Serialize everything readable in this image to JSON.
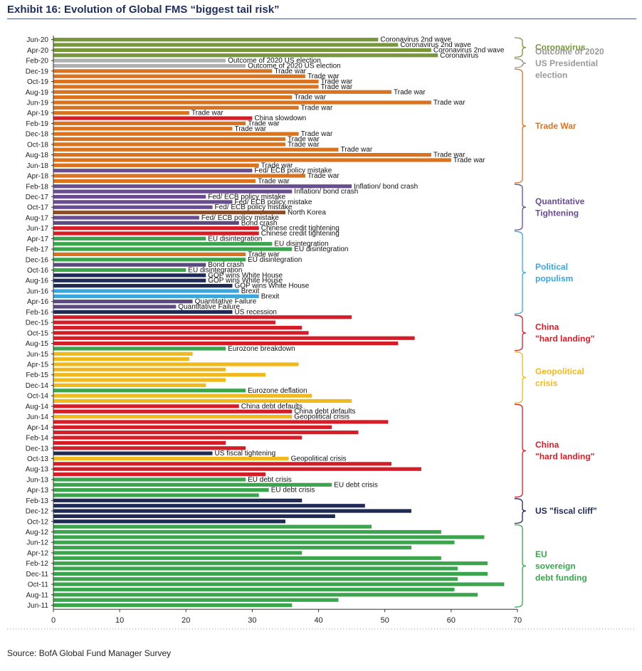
{
  "title": "Exhibit 16: Evolution of Global FMS “biggest tail risk”",
  "source": "Source: BofA Global Fund Manager Survey",
  "colors": {
    "Coronavirus": "#78963a",
    "US election": "#b0b0b0",
    "Trade war": "#d9731f",
    "China": "#d51d28",
    "Fed/ECB": "#6a4c93",
    "Inflation": "#6a4c93",
    "North Korea": "#8a4f2a",
    "Bond crash": "#5a4a80",
    "EU": "#3aa54c",
    "US politics": "#1f2a55",
    "Brexit": "#3aa6dc",
    "Geopolitical": "#f0b91e"
  },
  "chart_data": {
    "type": "bar",
    "orientation": "horizontal",
    "title": "Exhibit 16: Evolution of Global FMS “biggest tail risk”",
    "xlabel": "",
    "ylabel": "",
    "xlim": [
      0,
      70
    ],
    "x_ticks": [
      "0",
      "10",
      "20",
      "30",
      "40",
      "50",
      "60",
      "70"
    ],
    "tick_labels": [
      "Jun-20",
      "Apr-20",
      "Feb-20",
      "Dec-19",
      "Oct-19",
      "Aug-19",
      "Jun-19",
      "Apr-19",
      "Feb-19",
      "Dec-18",
      "Oct-18",
      "Aug-18",
      "Jun-18",
      "Apr-18",
      "Feb-18",
      "Dec-17",
      "Oct-17",
      "Aug-17",
      "Jun-17",
      "Apr-17",
      "Feb-17",
      "Dec-16",
      "Oct-16",
      "Aug-16",
      "Jun-16",
      "Apr-16",
      "Feb-16",
      "Dec-15",
      "Oct-15",
      "Aug-15",
      "Jun-15",
      "Apr-15",
      "Feb-15",
      "Dec-14",
      "Oct-14",
      "Aug-14",
      "Jun-14",
      "Apr-14",
      "Feb-14",
      "Dec-13",
      "Oct-13",
      "Aug-13",
      "Jun-13",
      "Apr-13",
      "Feb-13",
      "Dec-12",
      "Oct-12",
      "Aug-12",
      "Jun-12",
      "Apr-12",
      "Feb-12",
      "Dec-11",
      "Oct-11",
      "Aug-11",
      "Jun-11"
    ],
    "bars": [
      {
        "month": "Jun-20",
        "risk": "Coronavirus",
        "value": 49,
        "label": "Coronavirus 2nd wave"
      },
      {
        "month": "May-20",
        "risk": "Coronavirus",
        "value": 52,
        "label": "Coronavirus 2nd wave"
      },
      {
        "month": "Apr-20",
        "risk": "Coronavirus",
        "value": 57,
        "label": "Coronavirus 2nd wave"
      },
      {
        "month": "Mar-20",
        "risk": "Coronavirus",
        "value": 58,
        "label": "Coronavirus"
      },
      {
        "month": "Feb-20",
        "risk": "US election",
        "value": 26,
        "label": "Outcome of 2020 US election"
      },
      {
        "month": "Jan-20",
        "risk": "US election",
        "value": 29,
        "label": "Outcome of 2020 US election"
      },
      {
        "month": "Dec-19",
        "risk": "Trade war",
        "value": 33,
        "label": "Trade war"
      },
      {
        "month": "Nov-19",
        "risk": "Trade war",
        "value": 38,
        "label": "Trade war"
      },
      {
        "month": "Oct-19",
        "risk": "Trade war",
        "value": 40,
        "label": "Trade war"
      },
      {
        "month": "Sep-19",
        "risk": "Trade war",
        "value": 40,
        "label": "Trade war"
      },
      {
        "month": "Aug-19",
        "risk": "Trade war",
        "value": 51,
        "label": "Trade war"
      },
      {
        "month": "Jul-19",
        "risk": "Trade war",
        "value": 36,
        "label": "Trade war"
      },
      {
        "month": "Jun-19",
        "risk": "Trade war",
        "value": 57,
        "label": "Trade war"
      },
      {
        "month": "May-19",
        "risk": "Trade war",
        "value": 37,
        "label": "Trade war"
      },
      {
        "month": "Apr-19",
        "risk": "Trade war",
        "value": 20.5,
        "label": "Trade war"
      },
      {
        "month": "Mar-19",
        "risk": "China",
        "value": 30,
        "label": "China slowdown"
      },
      {
        "month": "Feb-19",
        "risk": "Trade war",
        "value": 29,
        "label": "Trade war"
      },
      {
        "month": "Jan-19",
        "risk": "Trade war",
        "value": 27,
        "label": "Trade war"
      },
      {
        "month": "Dec-18",
        "risk": "Trade war",
        "value": 37,
        "label": "Trade war"
      },
      {
        "month": "Nov-18",
        "risk": "Trade war",
        "value": 35,
        "label": "Trade war"
      },
      {
        "month": "Oct-18",
        "risk": "Trade war",
        "value": 35,
        "label": "Trade war"
      },
      {
        "month": "Sep-18",
        "risk": "Trade war",
        "value": 43,
        "label": "Trade war"
      },
      {
        "month": "Aug-18",
        "risk": "Trade war",
        "value": 57,
        "label": "Trade war"
      },
      {
        "month": "Jul-18",
        "risk": "Trade war",
        "value": 60,
        "label": "Trade war"
      },
      {
        "month": "Jun-18",
        "risk": "Trade war",
        "value": 31,
        "label": "Trade war"
      },
      {
        "month": "May-18",
        "risk": "Fed/ECB",
        "value": 30,
        "label": "Fed/ ECB policy mistake"
      },
      {
        "month": "Apr-18",
        "risk": "Trade war",
        "value": 38,
        "label": "Trade war"
      },
      {
        "month": "Mar-18",
        "risk": "Trade war",
        "value": 30.5,
        "label": "Trade war"
      },
      {
        "month": "Feb-18",
        "risk": "Inflation",
        "value": 45,
        "label": "Inflation/ bond crash"
      },
      {
        "month": "Jan-18",
        "risk": "Inflation",
        "value": 36,
        "label": "Inflation/ bond crash"
      },
      {
        "month": "Dec-17",
        "risk": "Fed/ECB",
        "value": 23,
        "label": "Fed/ ECB policy mistake"
      },
      {
        "month": "Nov-17",
        "risk": "Fed/ECB",
        "value": 27,
        "label": "Fed/ ECB policy mistake"
      },
      {
        "month": "Oct-17",
        "risk": "Fed/ECB",
        "value": 24,
        "label": "Fed/ ECB policy mistake"
      },
      {
        "month": "Sep-17",
        "risk": "North Korea",
        "value": 35,
        "label": "North Korea"
      },
      {
        "month": "Aug-17",
        "risk": "Fed/ECB",
        "value": 22,
        "label": "Fed/ ECB policy mistake"
      },
      {
        "month": "Jul-17",
        "risk": "Bond crash",
        "value": 28,
        "label": "Bond crash"
      },
      {
        "month": "Jun-17",
        "risk": "China",
        "value": 31,
        "label": "Chinese credit tightening"
      },
      {
        "month": "May-17",
        "risk": "China",
        "value": 31,
        "label": "Chinese credit tightening"
      },
      {
        "month": "Apr-17",
        "risk": "EU",
        "value": 23,
        "label": "EU disintegration"
      },
      {
        "month": "Mar-17",
        "risk": "EU",
        "value": 33,
        "label": "EU disintegration"
      },
      {
        "month": "Feb-17",
        "risk": "EU",
        "value": 36,
        "label": "EU disintegration"
      },
      {
        "month": "Jan-17",
        "risk": "Trade war",
        "value": 29,
        "label": "Trade war"
      },
      {
        "month": "Dec-16",
        "risk": "EU",
        "value": 29,
        "label": "EU disintegration"
      },
      {
        "month": "Nov-16",
        "risk": "Bond crash",
        "value": 23,
        "label": "Bond crash"
      },
      {
        "month": "Oct-16",
        "risk": "EU",
        "value": 20,
        "label": "EU disintegration"
      },
      {
        "month": "Sep-16",
        "risk": "US politics",
        "value": 23,
        "label": "GOP wins White House"
      },
      {
        "month": "Aug-16",
        "risk": "US politics",
        "value": 23,
        "label": "GOP wins White House"
      },
      {
        "month": "Jul-16",
        "risk": "US politics",
        "value": 27,
        "label": "GOP wins White House"
      },
      {
        "month": "Jun-16",
        "risk": "Brexit",
        "value": 28,
        "label": "Brexit"
      },
      {
        "month": "May-16",
        "risk": "Brexit",
        "value": 31,
        "label": "Brexit"
      },
      {
        "month": "Apr-16",
        "risk": "Bond crash",
        "value": 21,
        "label": "Quantitative Failure"
      },
      {
        "month": "Mar-16",
        "risk": "Bond crash",
        "value": 18.5,
        "label": "Quantitative Failure"
      },
      {
        "month": "Feb-16",
        "risk": "US politics",
        "value": 27,
        "label": "US recession"
      },
      {
        "month": "Jan-16",
        "risk": "China",
        "value": 45,
        "label": ""
      },
      {
        "month": "Dec-15",
        "risk": "China",
        "value": 33.5,
        "label": ""
      },
      {
        "month": "Nov-15",
        "risk": "China",
        "value": 37.5,
        "label": ""
      },
      {
        "month": "Oct-15",
        "risk": "China",
        "value": 38.5,
        "label": ""
      },
      {
        "month": "Sep-15",
        "risk": "China",
        "value": 54.5,
        "label": ""
      },
      {
        "month": "Aug-15",
        "risk": "China",
        "value": 52,
        "label": ""
      },
      {
        "month": "Jul-15",
        "risk": "EU",
        "value": 26,
        "label": "Eurozone breakdown"
      },
      {
        "month": "Jun-15",
        "risk": "Geopolitical",
        "value": 21,
        "label": ""
      },
      {
        "month": "May-15",
        "risk": "Geopolitical",
        "value": 20.5,
        "label": ""
      },
      {
        "month": "Apr-15",
        "risk": "Geopolitical",
        "value": 37,
        "label": ""
      },
      {
        "month": "Mar-15",
        "risk": "Geopolitical",
        "value": 26,
        "label": ""
      },
      {
        "month": "Feb-15",
        "risk": "Geopolitical",
        "value": 32,
        "label": ""
      },
      {
        "month": "Jan-15",
        "risk": "Geopolitical",
        "value": 26,
        "label": ""
      },
      {
        "month": "Dec-14",
        "risk": "Geopolitical",
        "value": 23,
        "label": ""
      },
      {
        "month": "Nov-14",
        "risk": "EU",
        "value": 29,
        "label": "Eurozone deflation"
      },
      {
        "month": "Oct-14",
        "risk": "Geopolitical",
        "value": 39,
        "label": ""
      },
      {
        "month": "Sep-14",
        "risk": "Geopolitical",
        "value": 45,
        "label": ""
      },
      {
        "month": "Aug-14",
        "risk": "China",
        "value": 28,
        "label": "China debt defaults"
      },
      {
        "month": "Jul-14",
        "risk": "China",
        "value": 36,
        "label": "China debt defaults"
      },
      {
        "month": "Jun-14",
        "risk": "Geopolitical",
        "value": 36,
        "label": "Geopolitical crisis"
      },
      {
        "month": "May-14",
        "risk": "China",
        "value": 50.5,
        "label": ""
      },
      {
        "month": "Apr-14",
        "risk": "China",
        "value": 42,
        "label": ""
      },
      {
        "month": "Mar-14",
        "risk": "China",
        "value": 46,
        "label": ""
      },
      {
        "month": "Feb-14",
        "risk": "China",
        "value": 37.5,
        "label": ""
      },
      {
        "month": "Jan-14",
        "risk": "China",
        "value": 26,
        "label": ""
      },
      {
        "month": "Dec-13",
        "risk": "China",
        "value": 29,
        "label": ""
      },
      {
        "month": "Nov-13",
        "risk": "US politics",
        "value": 24,
        "label": "US fiscal tightening"
      },
      {
        "month": "Oct-13",
        "risk": "Geopolitical",
        "value": 35.5,
        "label": "Geopolitical crisis"
      },
      {
        "month": "Sep-13",
        "risk": "China",
        "value": 51,
        "label": ""
      },
      {
        "month": "Aug-13",
        "risk": "China",
        "value": 55.5,
        "label": ""
      },
      {
        "month": "Jul-13",
        "risk": "China",
        "value": 32,
        "label": ""
      },
      {
        "month": "Jun-13",
        "risk": "EU",
        "value": 29,
        "label": "EU debt crisis"
      },
      {
        "month": "May-13",
        "risk": "EU",
        "value": 42,
        "label": "EU debt crisis"
      },
      {
        "month": "Apr-13",
        "risk": "EU",
        "value": 32.5,
        "label": "EU debt crisis"
      },
      {
        "month": "Mar-13",
        "risk": "EU",
        "value": 31,
        "label": ""
      },
      {
        "month": "Feb-13",
        "risk": "US politics",
        "value": 37.5,
        "label": ""
      },
      {
        "month": "Jan-13",
        "risk": "US politics",
        "value": 47,
        "label": ""
      },
      {
        "month": "Dec-12",
        "risk": "US politics",
        "value": 54,
        "label": ""
      },
      {
        "month": "Nov-12",
        "risk": "US politics",
        "value": 42.5,
        "label": ""
      },
      {
        "month": "Oct-12",
        "risk": "US politics",
        "value": 35,
        "label": ""
      },
      {
        "month": "Sep-12",
        "risk": "EU",
        "value": 48,
        "label": ""
      },
      {
        "month": "Aug-12",
        "risk": "EU",
        "value": 58.5,
        "label": ""
      },
      {
        "month": "Jul-12",
        "risk": "EU",
        "value": 65,
        "label": ""
      },
      {
        "month": "Jun-12",
        "risk": "EU",
        "value": 60.5,
        "label": ""
      },
      {
        "month": "May-12",
        "risk": "EU",
        "value": 54,
        "label": ""
      },
      {
        "month": "Apr-12",
        "risk": "EU",
        "value": 37.5,
        "label": ""
      },
      {
        "month": "Mar-12",
        "risk": "EU",
        "value": 58.5,
        "label": ""
      },
      {
        "month": "Feb-12",
        "risk": "EU",
        "value": 65.5,
        "label": ""
      },
      {
        "month": "Jan-12",
        "risk": "EU",
        "value": 61,
        "label": ""
      },
      {
        "month": "Dec-11",
        "risk": "EU",
        "value": 65.5,
        "label": ""
      },
      {
        "month": "Nov-11",
        "risk": "EU",
        "value": 61,
        "label": ""
      },
      {
        "month": "Oct-11",
        "risk": "EU",
        "value": 68,
        "label": ""
      },
      {
        "month": "Sep-11",
        "risk": "EU",
        "value": 60.5,
        "label": ""
      },
      {
        "month": "Aug-11",
        "risk": "EU",
        "value": 64,
        "label": ""
      },
      {
        "month": "Jul-11",
        "risk": "EU",
        "value": 43,
        "label": ""
      },
      {
        "month": "Jun-11",
        "risk": "EU",
        "value": 36,
        "label": ""
      }
    ],
    "regimes": [
      {
        "label": "Coronavirus",
        "from": "Jun-20",
        "to": "Mar-20",
        "color": "#78963a"
      },
      {
        "label": "Outcome of 2020 US Presidential election",
        "from": "Feb-20",
        "to": "Jan-20",
        "color": "#999999"
      },
      {
        "label": "Trade War",
        "from": "Dec-19",
        "to": "Mar-18",
        "color": "#d9731f"
      },
      {
        "label": "Quantitative Tightening",
        "from": "Feb-18",
        "to": "Jun-17",
        "color": "#6a4c93"
      },
      {
        "label": "Political populism",
        "from": "May-17",
        "to": "Feb-16",
        "color": "#3aa6dc"
      },
      {
        "label": "China \"hard landing\"",
        "from": "Jan-16",
        "to": "Jul-15",
        "color": "#d51d28"
      },
      {
        "label": "Geopolitical crisis",
        "from": "Jun-15",
        "to": "Sep-14",
        "color": "#f0b91e"
      },
      {
        "label": "China \"hard landing\"",
        "from": "Aug-14",
        "to": "Mar-13",
        "color": "#d51d28"
      },
      {
        "label": "US \"fiscal cliff\"",
        "from": "Feb-13",
        "to": "Oct-12",
        "color": "#1f2a55"
      },
      {
        "label": "EU sovereign debt funding",
        "from": "Sep-12",
        "to": "Jun-11",
        "color": "#3aa54c"
      }
    ]
  }
}
